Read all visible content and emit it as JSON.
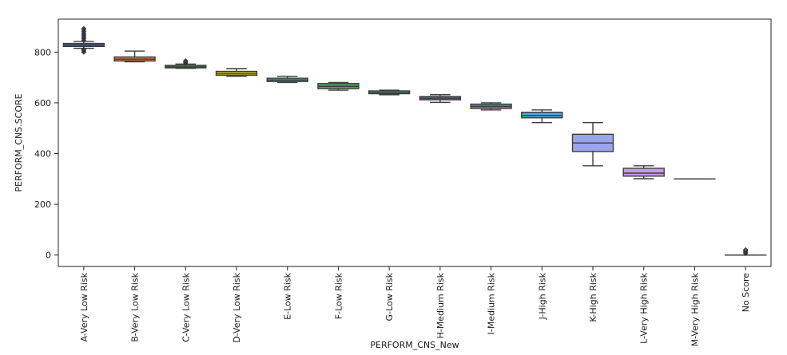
{
  "chart_data": {
    "type": "box",
    "xlabel": "PERFORM_CNS_New",
    "ylabel": "PERFORM_CNS.SCORE",
    "ylim": [
      -45,
      930
    ],
    "yticks": [
      0,
      200,
      400,
      600,
      800
    ],
    "grid": false,
    "legend": "none",
    "categories": [
      "A-Very Low Risk",
      "B-Very Low Risk",
      "C-Very Low Risk",
      "D-Very Low Risk",
      "E-Low Risk",
      "F-Low Risk",
      "G-Low Risk",
      "H-Medium Risk",
      "I-Medium Risk",
      "J-High Risk",
      "K-High Risk",
      "L-Very High Risk",
      "M-Very High Risk",
      "No Score"
    ],
    "boxes": [
      {
        "whisker_low": 815,
        "q1": 822,
        "median": 828,
        "q3": 834,
        "whisker_high": 842,
        "outliers_low": [
          800,
          804,
          808,
          811
        ],
        "outliers_high": [
          846,
          852,
          858,
          864,
          870,
          876,
          882,
          888,
          893
        ],
        "color": "#3f6fae"
      },
      {
        "whisker_low": 762,
        "q1": 765,
        "median": 772,
        "q3": 781,
        "whisker_high": 804,
        "outliers_low": [],
        "outliers_high": [],
        "color": "#dc7d4c"
      },
      {
        "whisker_low": 736,
        "q1": 738,
        "median": 742,
        "q3": 748,
        "whisker_high": 753,
        "outliers_low": [],
        "outliers_high": [
          757,
          760,
          763,
          766
        ],
        "color": "#4a9a4a"
      },
      {
        "whisker_low": 705,
        "q1": 709,
        "median": 716,
        "q3": 724,
        "whisker_high": 735,
        "outliers_low": [],
        "outliers_high": [],
        "color": "#d9c62a"
      },
      {
        "whisker_low": 680,
        "q1": 684,
        "median": 690,
        "q3": 697,
        "whisker_high": 705,
        "outliers_low": [],
        "outliers_high": [],
        "color": "#3aa6a6"
      },
      {
        "whisker_low": 650,
        "q1": 656,
        "median": 665,
        "q3": 676,
        "whisker_high": 680,
        "outliers_low": [],
        "outliers_high": [],
        "color": "#3fae55"
      },
      {
        "whisker_low": 632,
        "q1": 636,
        "median": 640,
        "q3": 647,
        "whisker_high": 650,
        "outliers_low": [],
        "outliers_high": [],
        "color": "#3e9e8a"
      },
      {
        "whisker_low": 602,
        "q1": 612,
        "median": 618,
        "q3": 625,
        "whisker_high": 632,
        "outliers_low": [],
        "outliers_high": [],
        "color": "#3a8c90"
      },
      {
        "whisker_low": 572,
        "q1": 578,
        "median": 586,
        "q3": 595,
        "whisker_high": 600,
        "outliers_low": [],
        "outliers_high": [],
        "color": "#3c97ae"
      },
      {
        "whisker_low": 522,
        "q1": 541,
        "median": 550,
        "q3": 563,
        "whisker_high": 572,
        "outliers_low": [],
        "outliers_high": [],
        "color": "#52a8d8"
      },
      {
        "whisker_low": 352,
        "q1": 408,
        "median": 442,
        "q3": 476,
        "whisker_high": 522,
        "outliers_low": [],
        "outliers_high": [],
        "color": "#9aa6ec"
      },
      {
        "whisker_low": 301,
        "q1": 311,
        "median": 323,
        "q3": 342,
        "whisker_high": 352,
        "outliers_low": [],
        "outliers_high": [],
        "color": "#c69ae6"
      },
      {
        "whisker_low": 300,
        "q1": 300,
        "median": 300,
        "q3": 300,
        "whisker_high": 300,
        "outliers_low": [],
        "outliers_high": [],
        "color": "#d88ac9"
      },
      {
        "whisker_low": 0,
        "q1": 0,
        "median": 0,
        "q3": 0,
        "whisker_high": 0,
        "outliers_low": [],
        "outliers_high": [
          6,
          10,
          14,
          18,
          21
        ],
        "color": "#e48aa9"
      }
    ]
  }
}
